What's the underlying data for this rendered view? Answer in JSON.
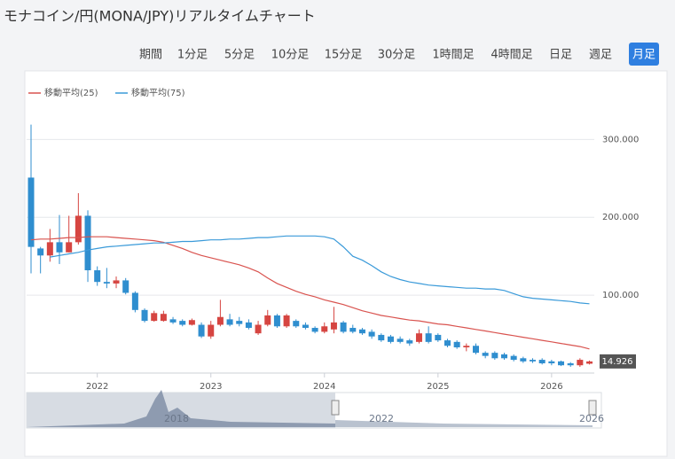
{
  "page": {
    "title": "モナコイン/円(MONA/JPY)リアルタイムチャート",
    "period_label": "期間",
    "buttons": [
      "1分足",
      "5分足",
      "10分足",
      "15分足",
      "30分足",
      "1時間足",
      "4時間足",
      "日足",
      "週足",
      "月足"
    ],
    "active_button": 9
  },
  "navigator": {
    "labels": [
      "2018",
      "2022",
      "2026"
    ]
  },
  "chart_data": {
    "type": "candlestick",
    "categories": [
      null,
      null,
      null,
      null,
      null,
      null,
      null,
      "2022",
      null,
      null,
      null,
      null,
      null,
      null,
      null,
      null,
      null,
      null,
      null,
      "2023",
      null,
      null,
      null,
      null,
      null,
      null,
      null,
      null,
      null,
      null,
      null,
      "2024",
      null,
      null,
      null,
      null,
      null,
      null,
      null,
      null,
      null,
      null,
      null,
      "2025",
      null,
      null,
      null,
      null,
      null,
      null,
      null,
      null,
      null,
      null,
      null,
      "2026",
      null,
      null,
      null,
      null
    ],
    "open": [
      251,
      160,
      151,
      168,
      155,
      168,
      202,
      132,
      117,
      115,
      119,
      103,
      81,
      67,
      67,
      69,
      67,
      62,
      62,
      47,
      62,
      69,
      67,
      65,
      51,
      62,
      74,
      60,
      67,
      62,
      58,
      53,
      56,
      65,
      58,
      56,
      53,
      49,
      47,
      44,
      42,
      40,
      51,
      49,
      42,
      40,
      33,
      35,
      26,
      26,
      24,
      22,
      19,
      17,
      17,
      15,
      15,
      12.5,
      10,
      12
    ],
    "high": [
      319,
      162,
      185,
      203,
      202,
      231,
      209,
      137,
      135,
      124,
      122,
      105,
      83,
      80,
      80,
      72,
      69,
      70,
      65,
      67,
      94,
      76,
      72,
      69,
      67,
      81,
      76,
      76,
      69,
      65,
      60,
      65,
      85,
      67,
      62,
      58,
      56,
      51,
      49,
      47,
      44,
      56,
      60,
      51,
      44,
      42,
      38,
      38,
      28,
      28,
      26,
      24,
      21,
      19,
      19,
      17,
      16,
      14,
      19,
      16
    ],
    "low": [
      128,
      128,
      143,
      140,
      155,
      165,
      117,
      112,
      109,
      109,
      101,
      78,
      65,
      66,
      66,
      63,
      60,
      61,
      45,
      44,
      60,
      60,
      60,
      56,
      49,
      60,
      58,
      58,
      58,
      56,
      51,
      51,
      51,
      51,
      51,
      49,
      44,
      40,
      38,
      38,
      35,
      38,
      38,
      40,
      33,
      31,
      28,
      24,
      19,
      17,
      17,
      15,
      13,
      13,
      11,
      10,
      9,
      8,
      8,
      11
    ],
    "close": [
      162,
      151,
      168,
      155,
      168,
      202,
      132,
      117,
      115,
      119,
      103,
      81,
      67,
      77,
      76,
      65,
      62,
      68,
      47,
      62,
      72,
      62,
      63,
      58,
      62,
      74,
      60,
      74,
      60,
      58,
      53,
      60,
      65,
      53,
      53,
      51,
      47,
      42,
      40,
      40,
      38,
      51,
      40,
      42,
      35,
      33,
      35,
      26,
      22,
      19,
      19,
      17,
      15,
      15,
      12.5,
      12.5,
      10,
      10,
      17,
      14.926
    ],
    "up_color": "#d64541",
    "down_color": "#2f8ecf",
    "series": [
      {
        "name": "移動平均(25)",
        "color": "#d9534f",
        "values": [
          171,
          172,
          172,
          173,
          174,
          174,
          175,
          175,
          175,
          174,
          173,
          172,
          171,
          170,
          168,
          164,
          160,
          155,
          151,
          148,
          145,
          142,
          139,
          135,
          130,
          122,
          115,
          110,
          105,
          101,
          98,
          94,
          91,
          88,
          84,
          80,
          77,
          74,
          72,
          70,
          68,
          67,
          65,
          63,
          62,
          60,
          58,
          56,
          54,
          52,
          50,
          48,
          46,
          44,
          42,
          40,
          38,
          36,
          34,
          31
        ]
      },
      {
        "name": "移動平均(75)",
        "color": "#3a9ad9",
        "values": [
          null,
          null,
          149,
          151,
          153,
          155,
          158,
          160,
          162,
          163,
          164,
          165,
          166,
          167,
          167,
          168,
          169,
          169,
          170,
          171,
          171,
          172,
          172,
          173,
          174,
          174,
          175,
          176,
          176,
          176,
          176,
          175,
          172,
          162,
          150,
          145,
          138,
          130,
          124,
          120,
          117,
          115,
          113,
          112,
          111,
          110,
          109,
          109,
          108,
          108,
          106,
          102,
          98,
          96,
          95,
          94,
          93,
          92,
          90,
          89
        ]
      }
    ],
    "ylim": [
      0,
      330
    ],
    "yticks": [
      {
        "value": 100,
        "label": "100.000"
      },
      {
        "value": 200,
        "label": "200.000"
      },
      {
        "value": 300,
        "label": "300.000"
      }
    ],
    "grid": true
  }
}
